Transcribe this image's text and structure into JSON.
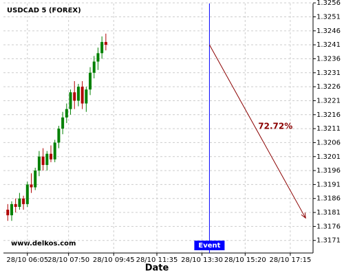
{
  "chart_data": {
    "type": "candlestick",
    "title": "USDCAD 5 (FOREX)",
    "xlabel": "Date",
    "watermark": "www.delkos.com",
    "up_color": "#008000",
    "down_color": "#b00000",
    "grid": true,
    "x": [
      "28/10 05:15",
      "28/10 05:25",
      "28/10 05:35",
      "28/10 05:45",
      "28/10 05:55",
      "28/10 06:05",
      "28/10 06:15",
      "28/10 06:25",
      "28/10 06:35",
      "28/10 06:45",
      "28/10 06:55",
      "28/10 07:05",
      "28/10 07:15",
      "28/10 07:25",
      "28/10 07:35",
      "28/10 07:45",
      "28/10 07:55",
      "28/10 08:05",
      "28/10 08:15",
      "28/10 08:25",
      "28/10 08:35",
      "28/10 08:45",
      "28/10 08:55",
      "28/10 09:05",
      "28/10 09:15",
      "28/10 09:25"
    ],
    "open": [
      1.3182,
      1.318,
      1.3184,
      1.3183,
      1.3186,
      1.3184,
      1.3191,
      1.319,
      1.3196,
      1.3201,
      1.3198,
      1.3202,
      1.32,
      1.3206,
      1.3211,
      1.3215,
      1.3218,
      1.3224,
      1.3221,
      1.3226,
      1.322,
      1.3225,
      1.3231,
      1.3235,
      1.3238,
      1.3242
    ],
    "high": [
      1.3184,
      1.3185,
      1.3186,
      1.3188,
      1.3187,
      1.3192,
      1.3195,
      1.3197,
      1.3203,
      1.3204,
      1.3203,
      1.3205,
      1.3207,
      1.3212,
      1.3217,
      1.322,
      1.3225,
      1.3228,
      1.3227,
      1.3228,
      1.3226,
      1.3233,
      1.3237,
      1.324,
      1.3244,
      1.3245
    ],
    "low": [
      1.3178,
      1.3178,
      1.3181,
      1.3182,
      1.3182,
      1.3183,
      1.3188,
      1.3189,
      1.3194,
      1.3196,
      1.3196,
      1.3199,
      1.3199,
      1.3204,
      1.3209,
      1.3213,
      1.3216,
      1.3218,
      1.3219,
      1.3218,
      1.3217,
      1.3223,
      1.3229,
      1.3232,
      1.3236,
      1.3239
    ],
    "close": [
      1.318,
      1.3184,
      1.3183,
      1.3186,
      1.3184,
      1.3191,
      1.319,
      1.3196,
      1.3201,
      1.3198,
      1.3202,
      1.32,
      1.3206,
      1.3211,
      1.3215,
      1.3218,
      1.3224,
      1.3221,
      1.3226,
      1.322,
      1.3225,
      1.3231,
      1.3235,
      1.3238,
      1.3242,
      1.3241
    ],
    "xlim": [
      "28/10 05:04",
      "28/10 18:13"
    ],
    "xticks": [
      "28/10 06:05",
      "28/10 07:50",
      "28/10 09:45",
      "28/10 11:35",
      "28/10 13:30",
      "28/10 15:20",
      "28/10 17:15"
    ],
    "ylim": [
      1.31665,
      1.32558
    ],
    "yticks": [
      1.3256,
      1.3251,
      1.3246,
      1.3241,
      1.3236,
      1.3231,
      1.3226,
      1.3221,
      1.3216,
      1.3211,
      1.3206,
      1.3201,
      1.3196,
      1.3191,
      1.3186,
      1.3181,
      1.3176,
      1.3171
    ],
    "event": {
      "label": "Event",
      "x": "28/10 13:49",
      "color": "#0000ff"
    },
    "projection": {
      "label": "72.72%",
      "color": "#8b0000",
      "from": {
        "x": "28/10 13:49",
        "y": 1.3241
      },
      "to": {
        "x": "28/10 17:54",
        "y": 1.3179
      }
    }
  }
}
